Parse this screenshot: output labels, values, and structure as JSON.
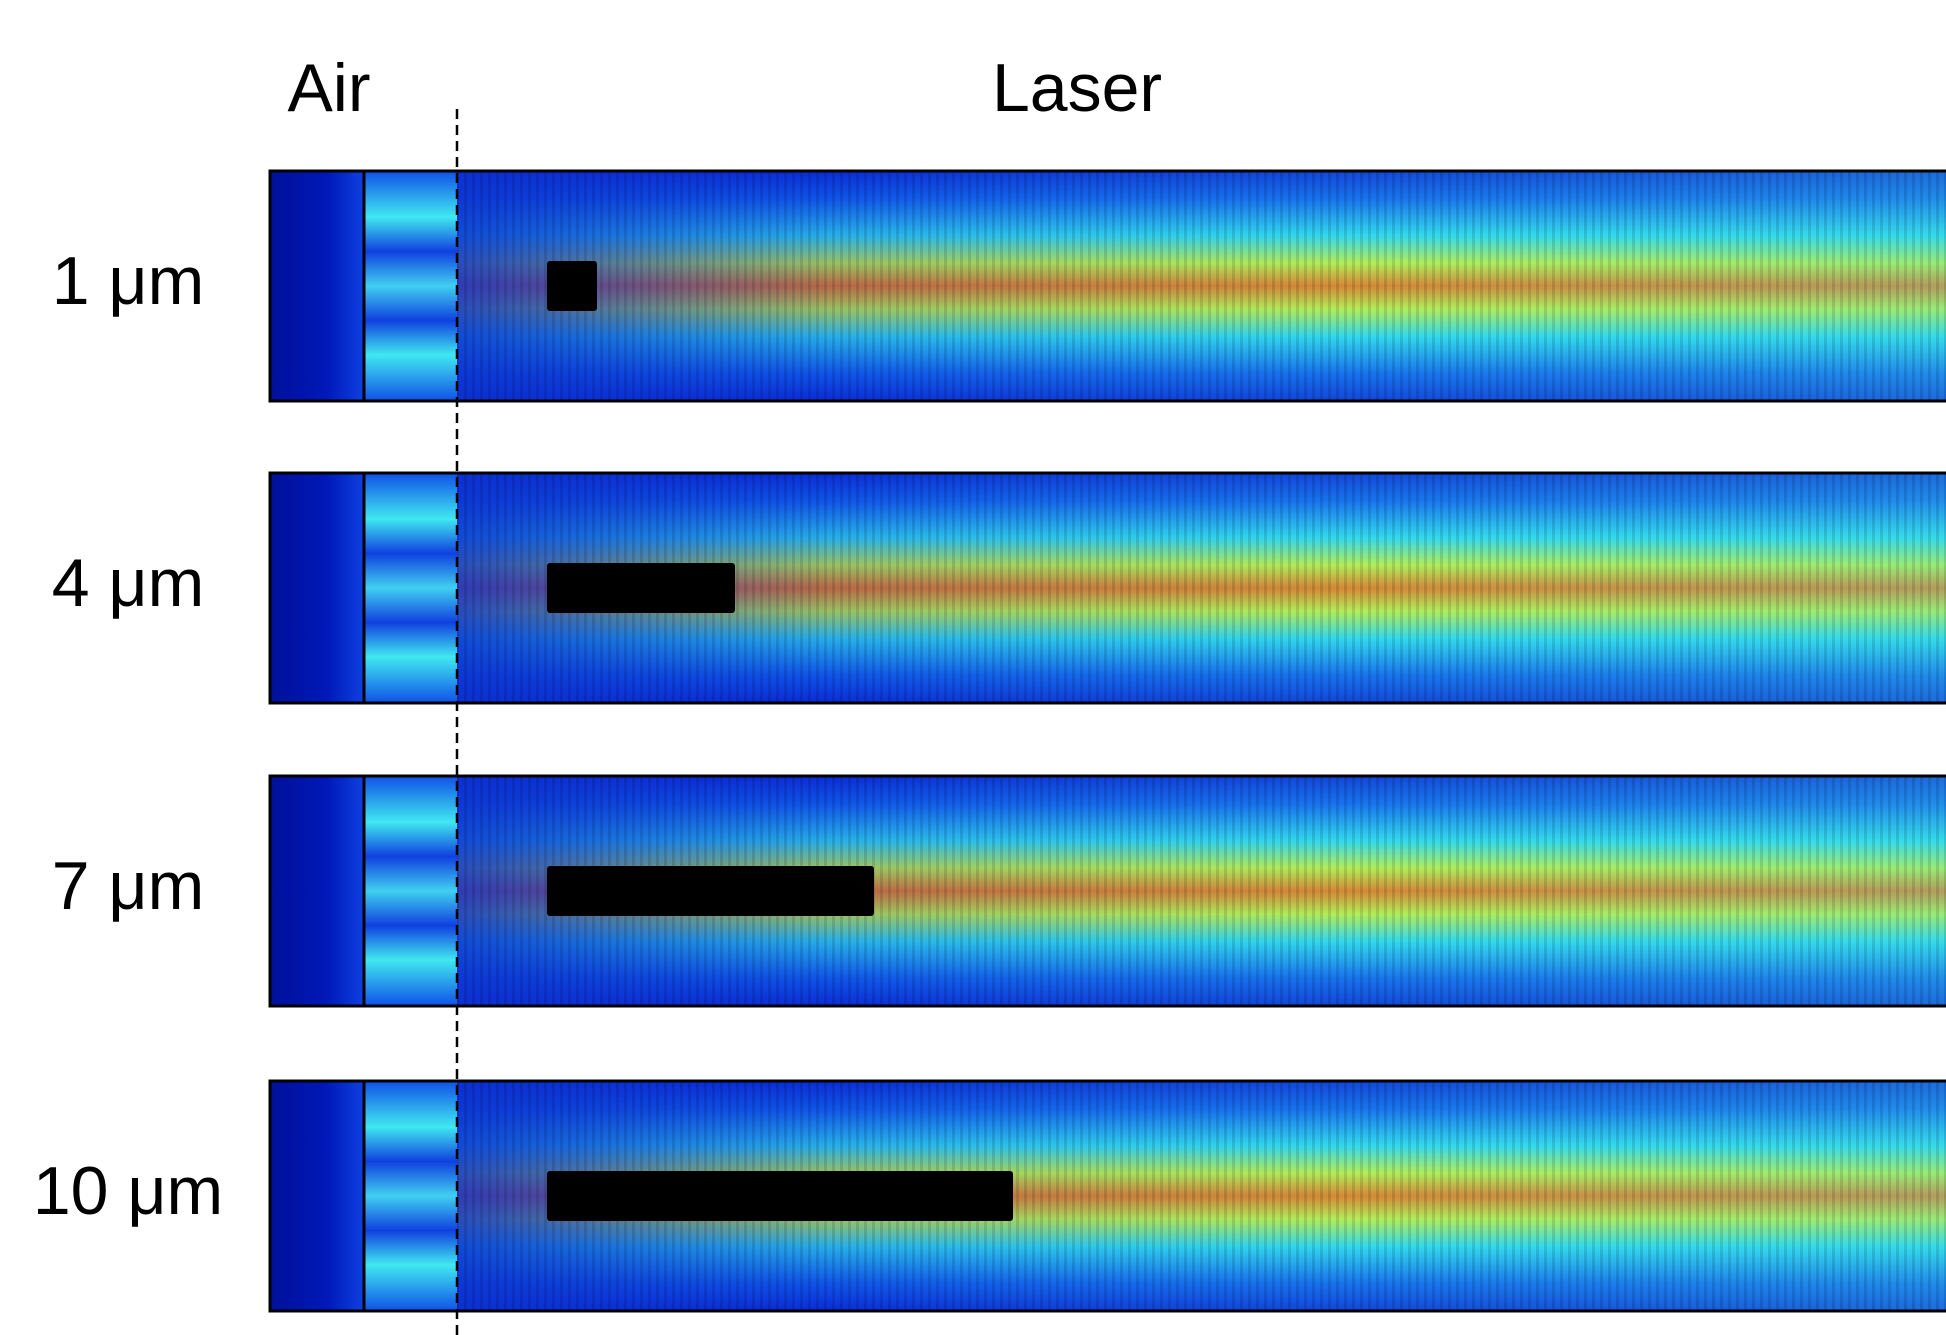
{
  "header": {
    "air": "Air",
    "laser": "Laser"
  },
  "rows": [
    {
      "label": "1 μm"
    },
    {
      "label": "4 μm"
    },
    {
      "label": "7 μm"
    },
    {
      "label": "10 μm"
    }
  ]
}
